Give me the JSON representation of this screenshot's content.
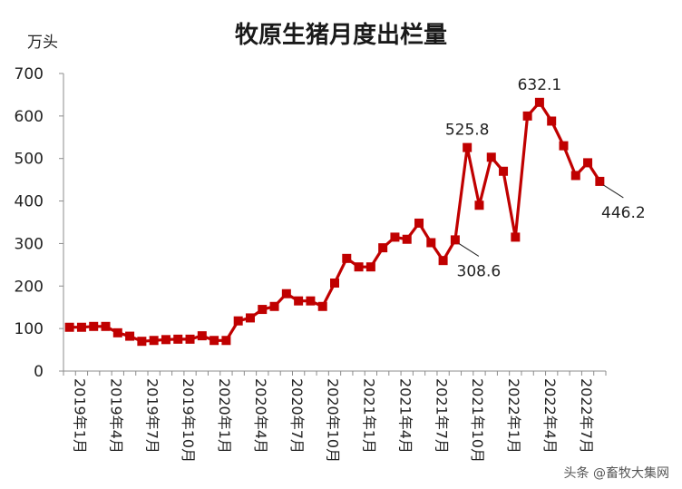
{
  "chart_data": {
    "type": "line",
    "title": "牧原生猪月度出栏量",
    "ylabel": "万头",
    "ylim": [
      0,
      700
    ],
    "y_ticks": [
      0,
      100,
      200,
      300,
      400,
      500,
      600,
      700
    ],
    "grid": false,
    "categories": [
      "2019年1月",
      "2019年2月",
      "2019年3月",
      "2019年4月",
      "2019年5月",
      "2019年6月",
      "2019年7月",
      "2019年8月",
      "2019年9月",
      "2019年10月",
      "2019年11月",
      "2019年12月",
      "2020年1月",
      "2020年2月",
      "2020年3月",
      "2020年4月",
      "2020年5月",
      "2020年6月",
      "2020年7月",
      "2020年8月",
      "2020年9月",
      "2020年10月",
      "2020年11月",
      "2020年12月",
      "2021年1月",
      "2021年2月",
      "2021年3月",
      "2021年4月",
      "2021年5月",
      "2021年6月",
      "2021年7月",
      "2021年8月",
      "2021年9月",
      "2021年10月",
      "2021年11月",
      "2021年12月",
      "2022年1月",
      "2022年2月",
      "2022年3月",
      "2022年4月",
      "2022年5月",
      "2022年6月",
      "2022年7月",
      "2022年8月",
      "2022年9月"
    ],
    "shown_tick_labels": [
      {
        "index": 0,
        "label": "2019年1月"
      },
      {
        "index": 3,
        "label": "2019年4月"
      },
      {
        "index": 6,
        "label": "2019年7月"
      },
      {
        "index": 9,
        "label": "2019年10月"
      },
      {
        "index": 12,
        "label": "2020年1月"
      },
      {
        "index": 15,
        "label": "2020年4月"
      },
      {
        "index": 18,
        "label": "2020年7月"
      },
      {
        "index": 21,
        "label": "2020年10月"
      },
      {
        "index": 24,
        "label": "2021年1月"
      },
      {
        "index": 27,
        "label": "2021年4月"
      },
      {
        "index": 30,
        "label": "2021年7月"
      },
      {
        "index": 33,
        "label": "2021年10月"
      },
      {
        "index": 36,
        "label": "2022年1月"
      },
      {
        "index": 39,
        "label": "2022年4月"
      },
      {
        "index": 42,
        "label": "2022年7月"
      }
    ],
    "series": [
      {
        "values": [
          103,
          103,
          105,
          105,
          90,
          82,
          70,
          72,
          74,
          75,
          75,
          83,
          72,
          72,
          118,
          125,
          145,
          152,
          182,
          165,
          165,
          152,
          207,
          265,
          245,
          245,
          290,
          315,
          310,
          348,
          302,
          260,
          308.6,
          525.8,
          390,
          503,
          470,
          315,
          600,
          632.1,
          588,
          530,
          460,
          490,
          446.2
        ]
      }
    ],
    "annotations": [
      {
        "index": 32,
        "text": "308.6",
        "dir": "below-right"
      },
      {
        "index": 33,
        "text": "525.8",
        "dir": "above"
      },
      {
        "index": 39,
        "text": "632.1",
        "dir": "above"
      },
      {
        "index": 44,
        "text": "446.2",
        "dir": "below-right"
      }
    ],
    "colors": {
      "series": "#c00000",
      "axis": "#8c8c8c",
      "text": "#222222"
    }
  },
  "watermark": "头条 @畜牧大集网"
}
